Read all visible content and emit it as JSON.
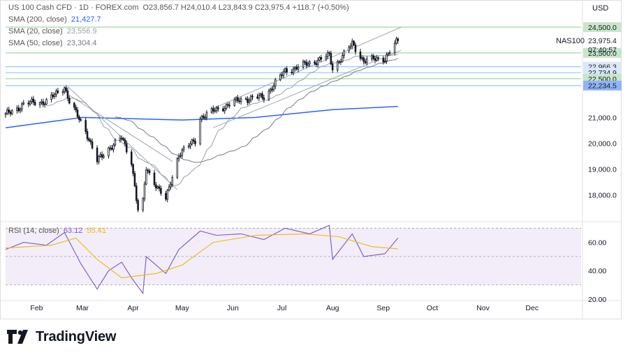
{
  "header": {
    "symbol": "US 100 Cash CFD · 1D · FOREX.com",
    "ohlc": "O23,856.7 H24,010.4 L23,843.9 C23,975.4 +118.7 (+0.50%)"
  },
  "indicators": [
    {
      "label": "SMA (200, close)",
      "value": "21,427.7",
      "color": "#2962ff"
    },
    {
      "label": "SMA (20, close)",
      "value": "23,556.9",
      "color": "#9aa0a6"
    },
    {
      "label": "SMA (50, close)",
      "value": "23,304.4",
      "color": "#787b86"
    }
  ],
  "rsi_legend": {
    "label": "RSI (14, close)",
    "value1": "63.12",
    "value2": "55.41",
    "color1": "#7e57c2",
    "color2": "#f0b90b"
  },
  "price_axis": {
    "currency": "USD",
    "symbol_tag": "NAS100",
    "last_price": "23,975.4",
    "countdown": "07:40:57",
    "tags": [
      {
        "text": "24,500.0",
        "bg": "#c8e6c9",
        "value": 24500
      },
      {
        "text": "23,500.0",
        "bg": "#c8e6c9",
        "value": 23500
      },
      {
        "text": "22,966.3",
        "bg": "#dbe7fb",
        "value": 22966.3
      },
      {
        "text": "22,734.9",
        "bg": "#dbe7fb",
        "value": 22734.9
      },
      {
        "text": "22,500.0",
        "bg": "#c8e6c9",
        "value": 22500
      },
      {
        "text": "22,234.5",
        "bg": "#90b4f5",
        "value": 22234.5
      }
    ],
    "ticks": [
      "21,000.0",
      "20,000.0",
      "19,000.0",
      "18,000.0"
    ]
  },
  "rsi_axis": {
    "ticks": [
      "60.00",
      "40.00",
      "20.00"
    ]
  },
  "time_axis": {
    "labels": [
      "Feb",
      "Mar",
      "Apr",
      "May",
      "Jun",
      "Jul",
      "Aug",
      "Sep",
      "Oct",
      "Nov",
      "Dec"
    ]
  },
  "brand": {
    "name": "TradingView"
  },
  "colors": {
    "up": "#131722",
    "down": "#131722",
    "sma200": "#2962ff",
    "sma20": "#9aa0a6",
    "sma50": "#787b86",
    "rsi": "#7e57c2",
    "rsi_ma": "#f0b90b",
    "hline_green": "#a5d6a7",
    "hline_blue": "#90caf9"
  },
  "chart_data": [
    {
      "type": "candlestick",
      "title": "US 100 Cash CFD · 1D · FOREX.com",
      "xlabel": "",
      "ylabel": "USD",
      "x_range": [
        "2025-01-13",
        "2025-12-31"
      ],
      "ylim": [
        17200,
        25200
      ],
      "horizontal_levels": [
        24500,
        23500,
        22966.3,
        22734.9,
        22500,
        22234.5
      ],
      "anchors": [
        {
          "date": "2025-01-13",
          "close": 21100
        },
        {
          "date": "2025-01-24",
          "close": 21500
        },
        {
          "date": "2025-01-31",
          "close": 21600
        },
        {
          "date": "2025-02-07",
          "close": 21600
        },
        {
          "date": "2025-02-18",
          "close": 22200
        },
        {
          "date": "2025-02-21",
          "close": 21600
        },
        {
          "date": "2025-03-03",
          "close": 20500
        },
        {
          "date": "2025-03-10",
          "close": 19300
        },
        {
          "date": "2025-03-17",
          "close": 19800
        },
        {
          "date": "2025-03-25",
          "close": 20200
        },
        {
          "date": "2025-03-31",
          "close": 19300
        },
        {
          "date": "2025-04-04",
          "close": 17400
        },
        {
          "date": "2025-04-07",
          "close": 17700
        },
        {
          "date": "2025-04-09",
          "close": 19000
        },
        {
          "date": "2025-04-21",
          "close": 17800
        },
        {
          "date": "2025-04-29",
          "close": 19600
        },
        {
          "date": "2025-05-09",
          "close": 20100
        },
        {
          "date": "2025-05-12",
          "close": 21000
        },
        {
          "date": "2025-05-22",
          "close": 21300
        },
        {
          "date": "2025-06-06",
          "close": 21700
        },
        {
          "date": "2025-06-20",
          "close": 21800
        },
        {
          "date": "2025-07-03",
          "close": 22800
        },
        {
          "date": "2025-07-18",
          "close": 23100
        },
        {
          "date": "2025-07-30",
          "close": 23400
        },
        {
          "date": "2025-08-01",
          "close": 22900
        },
        {
          "date": "2025-08-13",
          "close": 23850
        },
        {
          "date": "2025-08-20",
          "close": 23200
        },
        {
          "date": "2025-09-02",
          "close": 23300
        },
        {
          "date": "2025-09-10",
          "close": 23975.4
        }
      ],
      "series": [
        {
          "name": "SMA (200, close)",
          "points": [
            [
              "2025-01-13",
              20600
            ],
            [
              "2025-03-01",
              21000
            ],
            [
              "2025-05-01",
              20900
            ],
            [
              "2025-06-15",
              21000
            ],
            [
              "2025-08-01",
              21300
            ],
            [
              "2025-09-10",
              21427.7
            ]
          ]
        },
        {
          "name": "SMA (20, close)",
          "last": 23556.9
        },
        {
          "name": "SMA (50, close)",
          "last": 23304.4
        }
      ]
    },
    {
      "type": "line",
      "title": "RSI (14, close)",
      "ylim": [
        20,
        80
      ],
      "bands": [
        30,
        70
      ],
      "series": [
        {
          "name": "RSI (14, close)",
          "points": [
            [
              "2025-01-13",
              55
            ],
            [
              "2025-01-24",
              60
            ],
            [
              "2025-02-07",
              58
            ],
            [
              "2025-02-18",
              67
            ],
            [
              "2025-02-28",
              45
            ],
            [
              "2025-03-10",
              27
            ],
            [
              "2025-03-17",
              40
            ],
            [
              "2025-03-25",
              46
            ],
            [
              "2025-03-31",
              35
            ],
            [
              "2025-04-07",
              24
            ],
            [
              "2025-04-09",
              50
            ],
            [
              "2025-04-21",
              38
            ],
            [
              "2025-04-29",
              55
            ],
            [
              "2025-05-12",
              68
            ],
            [
              "2025-05-22",
              65
            ],
            [
              "2025-06-06",
              66
            ],
            [
              "2025-06-20",
              62
            ],
            [
              "2025-07-03",
              70
            ],
            [
              "2025-07-18",
              66
            ],
            [
              "2025-07-30",
              72
            ],
            [
              "2025-08-01",
              48
            ],
            [
              "2025-08-13",
              66
            ],
            [
              "2025-08-20",
              50
            ],
            [
              "2025-09-02",
              52
            ],
            [
              "2025-09-10",
              63.12
            ]
          ]
        },
        {
          "name": "RSI-based MA",
          "points": [
            [
              "2025-01-13",
              56
            ],
            [
              "2025-02-10",
              58
            ],
            [
              "2025-02-25",
              63
            ],
            [
              "2025-03-10",
              48
            ],
            [
              "2025-03-25",
              35
            ],
            [
              "2025-04-15",
              38
            ],
            [
              "2025-05-01",
              44
            ],
            [
              "2025-05-20",
              60
            ],
            [
              "2025-06-15",
              65
            ],
            [
              "2025-07-15",
              66
            ],
            [
              "2025-08-05",
              64
            ],
            [
              "2025-08-25",
              57
            ],
            [
              "2025-09-10",
              55.41
            ]
          ]
        }
      ]
    }
  ]
}
